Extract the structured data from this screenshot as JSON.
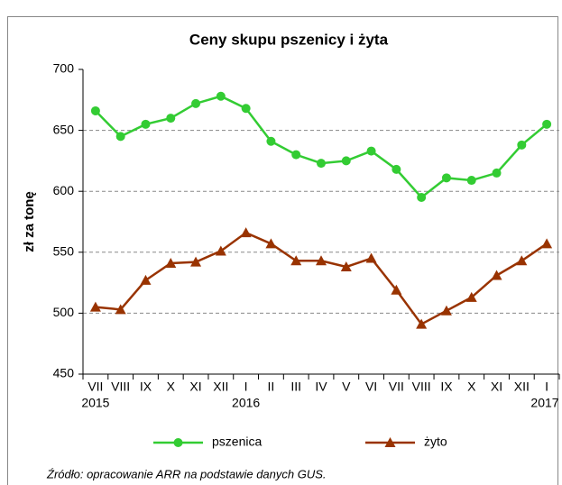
{
  "chart_data": {
    "type": "line",
    "title": "Ceny skupu pszenicy i żyta",
    "ylabel": "zł za tonę",
    "categories": [
      "VII",
      "VIII",
      "IX",
      "X",
      "XI",
      "XII",
      "I",
      "II",
      "III",
      "IV",
      "V",
      "VI",
      "VII",
      "VIII",
      "IX",
      "X",
      "XI",
      "XII",
      "I"
    ],
    "category_years": [
      "2015",
      null,
      null,
      null,
      null,
      null,
      "2016",
      null,
      null,
      null,
      null,
      null,
      null,
      null,
      null,
      null,
      null,
      null,
      "2017"
    ],
    "series": [
      {
        "name": "pszenica",
        "color": "#33cc33",
        "marker": "circle",
        "values": [
          666,
          645,
          655,
          660,
          672,
          678,
          668,
          641,
          630,
          623,
          625,
          633,
          618,
          595,
          611,
          609,
          615,
          638,
          655
        ]
      },
      {
        "name": "żyto",
        "color": "#993300",
        "marker": "triangle",
        "values": [
          505,
          503,
          527,
          541,
          542,
          551,
          566,
          557,
          543,
          543,
          538,
          545,
          519,
          491,
          502,
          513,
          531,
          543,
          557
        ]
      }
    ],
    "ylim": [
      450,
      700
    ],
    "yticks": [
      450,
      500,
      550,
      600,
      650,
      700
    ],
    "grid": true,
    "legend": "bottom",
    "source": "Źródło: opracowanie ARR na podstawie danych GUS."
  }
}
